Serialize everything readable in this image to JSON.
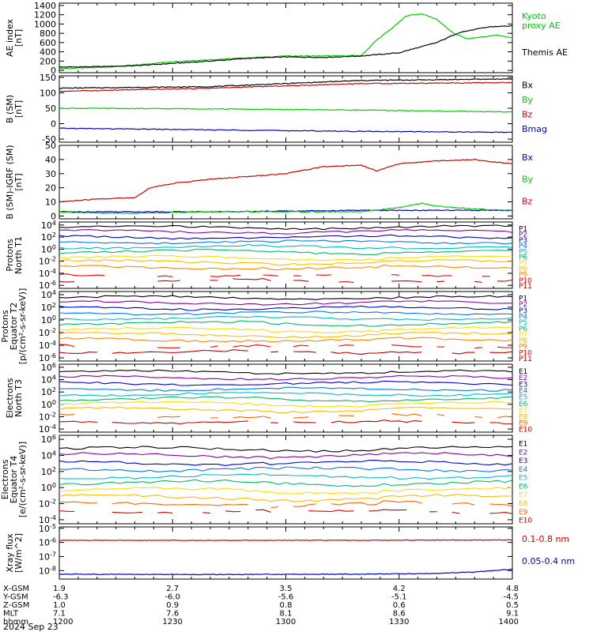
{
  "date": "2024 Sep 23",
  "colors": {
    "black": "#000000",
    "red": "#cc0000",
    "green": "#00cc00",
    "blue": "#0000bb",
    "p_scale": [
      "#000000",
      "#8800aa",
      "#0000cc",
      "#0077ff",
      "#00bbcc",
      "#00bb66",
      "#ffdd00",
      "#ffbb00",
      "#ff8800",
      "#ff0000",
      "#bb0000"
    ],
    "e_scale": [
      "#000000",
      "#8800aa",
      "#0000cc",
      "#0077ff",
      "#00bbcc",
      "#00bb66",
      "#ffdd00",
      "#ffbb00",
      "#ff6600",
      "#cc0000"
    ]
  },
  "ephemeris": {
    "rows": [
      {
        "label": "X-GSM",
        "values": [
          "1.9",
          "2.7",
          "3.5",
          "4.2",
          "4.8"
        ]
      },
      {
        "label": "Y-GSM",
        "values": [
          "-6.3",
          "-6.0",
          "-5.6",
          "-5.1",
          "-4.5"
        ]
      },
      {
        "label": "Z-GSM",
        "values": [
          "1.0",
          "0.9",
          "0.8",
          "0.6",
          "0.5"
        ]
      },
      {
        "label": "MLT",
        "values": [
          "7.1",
          "7.6",
          "8.1",
          "8.6",
          "9.1"
        ]
      },
      {
        "label": "hhmm",
        "values": [
          "1200",
          "1230",
          "1300",
          "1330",
          "1400"
        ]
      }
    ]
  },
  "chart_data": [
    {
      "type": "line",
      "ylabel": [
        "AE index",
        "[nT]"
      ],
      "ylim": [
        -50,
        1450
      ],
      "yticks": [
        0,
        200,
        400,
        600,
        800,
        1000,
        1200,
        1400
      ],
      "ytick_labels": [
        "0",
        "200",
        "400",
        "600",
        "800",
        "1000",
        "1200",
        "1400"
      ],
      "series": [
        {
          "name": "Kyoto proxy AE",
          "color": "green",
          "x": [
            0,
            5,
            10,
            15,
            20,
            25,
            30,
            35,
            40,
            42,
            44,
            46,
            48,
            50,
            52,
            54,
            56,
            58,
            60
          ],
          "y": [
            40,
            60,
            110,
            190,
            230,
            270,
            310,
            310,
            320,
            650,
            900,
            1180,
            1220,
            1100,
            820,
            680,
            720,
            760,
            700
          ]
        },
        {
          "name": "Themis AE",
          "color": "black",
          "x": [
            0,
            5,
            10,
            15,
            20,
            25,
            30,
            35,
            40,
            45,
            50,
            53,
            55,
            57,
            60
          ],
          "y": [
            70,
            80,
            100,
            150,
            200,
            260,
            290,
            280,
            310,
            380,
            600,
            820,
            880,
            940,
            960
          ]
        }
      ]
    },
    {
      "type": "line",
      "ylabel": [
        "B (SM)",
        "[nT]"
      ],
      "ylim": [
        -60,
        155
      ],
      "yticks": [
        -50,
        0,
        50,
        100,
        150
      ],
      "ytick_labels": [
        "-50",
        "0",
        "50",
        "100",
        "150"
      ],
      "series": [
        {
          "name": "Bx",
          "color": "black",
          "x": [
            0,
            20,
            40,
            60
          ],
          "y": [
            115,
            120,
            140,
            145
          ]
        },
        {
          "name": "By",
          "color": "green",
          "x": [
            0,
            20,
            40,
            60
          ],
          "y": [
            50,
            48,
            44,
            38
          ]
        },
        {
          "name": "Bz",
          "color": "red",
          "x": [
            0,
            20,
            40,
            60
          ],
          "y": [
            105,
            115,
            130,
            133
          ]
        },
        {
          "name": "Bmag",
          "color": "blue",
          "x": [
            0,
            20,
            40,
            60
          ],
          "y": [
            -15,
            -20,
            -25,
            -28
          ]
        }
      ]
    },
    {
      "type": "line",
      "ylabel": [
        "B (SM)-IGRF (SM)",
        "[nT]"
      ],
      "ylim": [
        -2,
        50
      ],
      "yticks": [
        0,
        10,
        20,
        30,
        40,
        50
      ],
      "ytick_labels": [
        "0",
        "10",
        "20",
        "30",
        "40",
        "50"
      ],
      "series": [
        {
          "name": "Bx",
          "color": "blue",
          "x": [
            0,
            20,
            40,
            60
          ],
          "y": [
            3,
            3,
            4,
            4
          ]
        },
        {
          "name": "By",
          "color": "green",
          "x": [
            0,
            5,
            10,
            20,
            30,
            40,
            45,
            48,
            50,
            55,
            60
          ],
          "y": [
            3,
            2,
            2,
            3,
            3,
            3,
            6,
            9,
            7,
            5,
            4
          ]
        },
        {
          "name": "Bz",
          "color": "red",
          "x": [
            0,
            5,
            10,
            12,
            15,
            20,
            25,
            30,
            33,
            35,
            40,
            42,
            45,
            50,
            55,
            58,
            60
          ],
          "y": [
            10,
            12,
            13,
            20,
            23,
            26,
            28,
            30,
            33,
            35,
            36,
            32,
            37,
            39,
            40,
            38,
            37
          ]
        }
      ]
    },
    {
      "type": "line",
      "log": true,
      "ylabel": [
        "Protons",
        "North T1"
      ],
      "ylim": [
        -6.5,
        4.5
      ],
      "yticks": [
        4,
        2,
        0,
        -2,
        -4,
        -6
      ],
      "ytick_labels": [
        "10^4",
        "10^2",
        "10^0",
        "10^-2",
        "10^-4",
        "10^-6"
      ],
      "legend": [
        "P1",
        "P2",
        "P3",
        "P4",
        "P5",
        "P6",
        "P7",
        "P8",
        "P9",
        "P10",
        "P11"
      ],
      "series_levels": [
        3.6,
        2.9,
        2.0,
        1.2,
        0.4,
        -0.4,
        -1.4,
        -2.1,
        -3.0,
        -4.3,
        -5.2
      ]
    },
    {
      "type": "line",
      "log": true,
      "ylabel": [
        "Protons",
        "Equator T2",
        "[p/(cm²-s-sr-keV)]"
      ],
      "ylim": [
        -6.5,
        4.5
      ],
      "yticks": [
        4,
        2,
        0,
        -2,
        -4,
        -6
      ],
      "ytick_labels": [
        "10^4",
        "10^2",
        "10^0",
        "10^-2",
        "10^-4",
        "10^-6"
      ],
      "legend": [
        "P1",
        "P2",
        "P3",
        "P4",
        "P5",
        "P6",
        "P7",
        "P8",
        "P9",
        "P10",
        "P11"
      ],
      "series_levels": [
        3.5,
        2.7,
        1.9,
        1.1,
        0.3,
        -0.5,
        -1.5,
        -2.3,
        -3.1,
        -4.1,
        -5.0
      ]
    },
    {
      "type": "line",
      "log": true,
      "ylabel": [
        "Electrons",
        "North T3"
      ],
      "ylim": [
        -4.5,
        6.5
      ],
      "yticks": [
        6,
        4,
        2,
        0,
        -2,
        -4
      ],
      "ytick_labels": [
        "10^6",
        "10^4",
        "10^2",
        "10^0",
        "10^-2",
        "10^-4"
      ],
      "legend": [
        "E1",
        "E2",
        "E3",
        "E4",
        "E5",
        "E6",
        "E7",
        "E8",
        "E9",
        "E10"
      ],
      "series_levels": [
        5.2,
        4.3,
        3.4,
        2.5,
        1.7,
        0.9,
        0.1,
        -0.8,
        -1.9,
        -2.8
      ]
    },
    {
      "type": "line",
      "log": true,
      "ylabel": [
        "Electrons",
        "Equator T4",
        "[e/(cm²-s-sr-keV)]"
      ],
      "ylim": [
        -4.5,
        6.5
      ],
      "yticks": [
        6,
        4,
        2,
        0,
        -2,
        -4
      ],
      "ytick_labels": [
        "10^6",
        "10^4",
        "10^2",
        "10^0",
        "10^-2",
        "10^-4"
      ],
      "legend": [
        "E1",
        "E2",
        "E3",
        "E4",
        "E5",
        "E6",
        "E7",
        "E8",
        "E9",
        "E10"
      ],
      "series_levels": [
        4.8,
        4.0,
        3.1,
        2.3,
        1.4,
        0.6,
        -0.3,
        -1.2,
        -2.0,
        -2.9
      ]
    },
    {
      "type": "line",
      "log": true,
      "ylabel": [
        "Xray flux",
        "[W/m^2]"
      ],
      "ylim": [
        -8.6,
        -4.9
      ],
      "yticks": [
        -5,
        -6,
        -7,
        -8
      ],
      "ytick_labels": [
        "10^-5",
        "10^-6",
        "10^-7",
        "10^-8"
      ],
      "series": [
        {
          "name": "0.1-0.8 nm",
          "color": "red",
          "x": [
            0,
            20,
            40,
            60
          ],
          "y": [
            -5.85,
            -5.85,
            -5.85,
            -5.82
          ]
        },
        {
          "name": "0.05-0.4 nm",
          "color": "blue",
          "x": [
            0,
            20,
            40,
            50,
            55,
            60
          ],
          "y": [
            -8.25,
            -8.28,
            -8.25,
            -8.2,
            -8.1,
            -7.9
          ]
        }
      ]
    }
  ]
}
